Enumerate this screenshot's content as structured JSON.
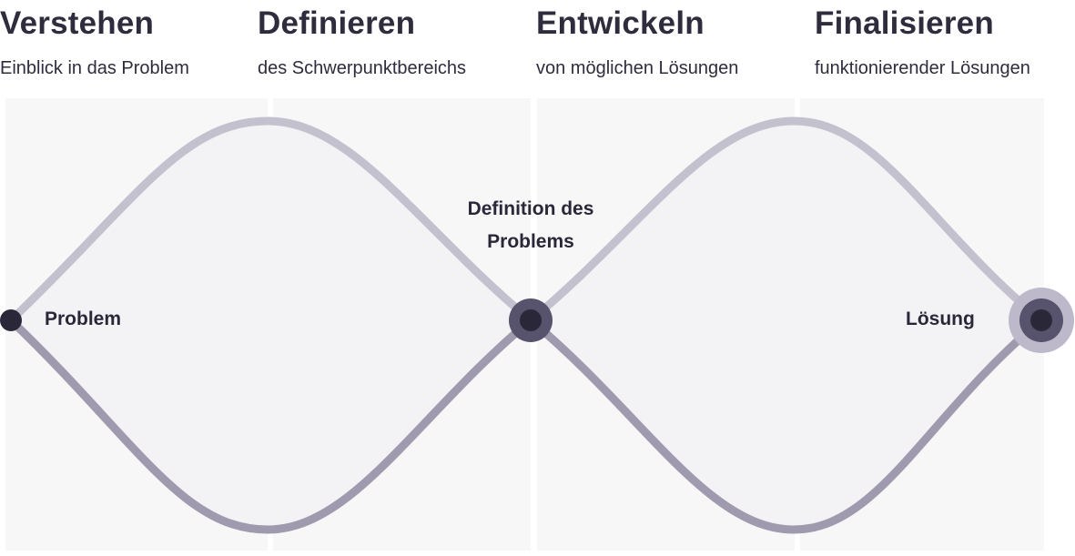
{
  "phases": [
    {
      "title": "Verstehen",
      "subtitle": "Einblick in das Problem"
    },
    {
      "title": "Definieren",
      "subtitle": "des Schwerpunktbereichs"
    },
    {
      "title": "Entwickeln",
      "subtitle": "von möglichen Lösungen"
    },
    {
      "title": "Finalisieren",
      "subtitle": "funktionierender Lösungen"
    }
  ],
  "nodes": {
    "start": "Problem",
    "middle": "Definition des Problems",
    "end": "Lösung"
  },
  "colors": {
    "panel": "#f6f6f8",
    "curve_top": "#c3c0cf",
    "curve_bottom": "#9e99ad",
    "node_dark": "#2a2838",
    "node_mid_ring": "#57536d",
    "node_end_outer": "#bdb9cb",
    "node_end_ring": "#57536d"
  }
}
